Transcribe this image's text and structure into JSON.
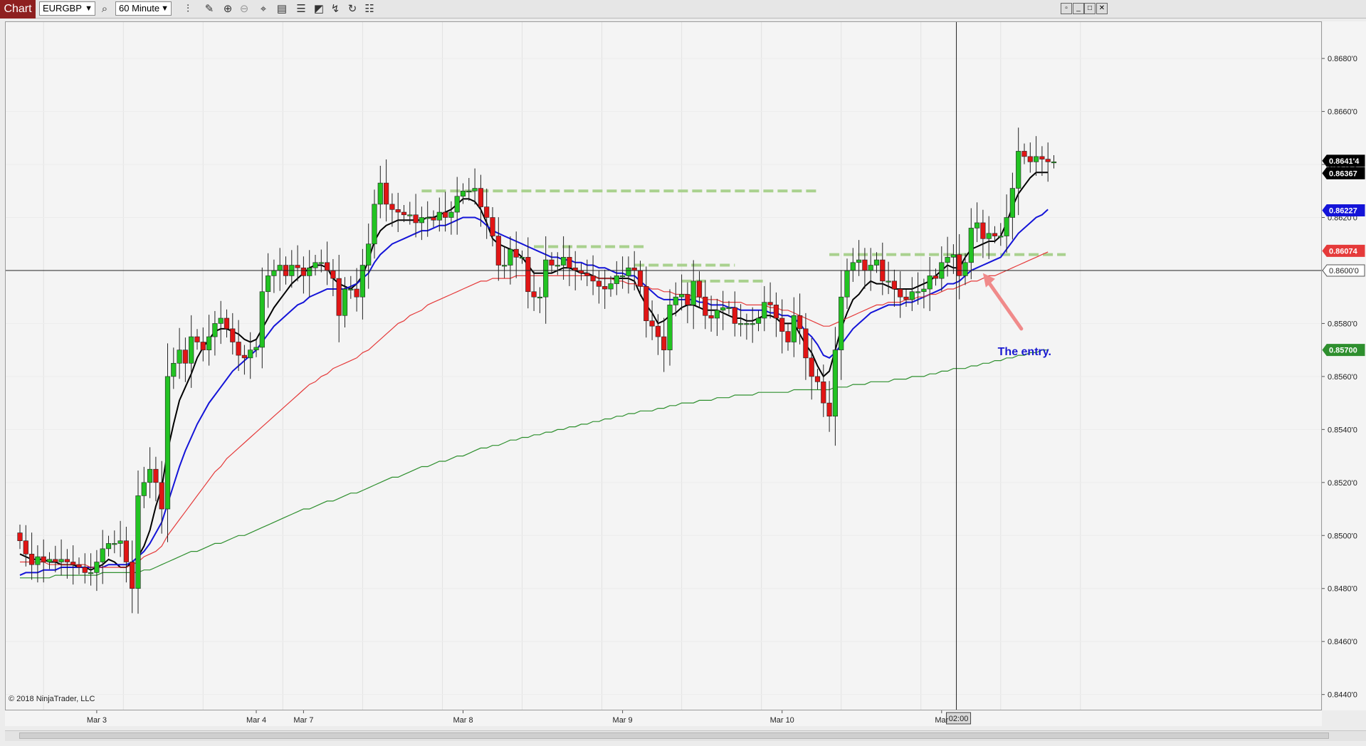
{
  "toolbar": {
    "chart_tab": "Chart",
    "instrument": "EURGBP",
    "interval": "60 Minute",
    "icons": [
      "magnifier-icon",
      "bar-type-icon",
      "pencil-icon",
      "zoom-in-icon",
      "zoom-out-icon",
      "crosshair-icon",
      "properties-icon",
      "data-series-icon",
      "strategies-icon",
      "drawing-tools-icon",
      "refresh-icon",
      "templates-icon"
    ],
    "window_icons": [
      "restore-icon",
      "minimize-icon",
      "maximize-icon",
      "close-icon"
    ]
  },
  "copyright": "© 2018 NinjaTrader, LLC",
  "crosshair_time": "02:00",
  "annotation": "The entry.",
  "colors": {
    "up": "#22c322",
    "down": "#e11515",
    "ema_fast": "#000000",
    "ema_mid": "#1414d8",
    "ema_slow": "#e53a3a",
    "ema_long": "#2e8f2e",
    "level_lines": "#a9d18e",
    "arrow": "#f08a8a"
  },
  "chart_data": {
    "type": "candlestick",
    "instrument": "EURGBP",
    "interval": "60 Minute",
    "y_range": [
      0.8434,
      0.8694
    ],
    "y_ticks": [
      "0.8680'0",
      "0.8660'0",
      "0.8640'0",
      "0.8620'0",
      "0.8600'0",
      "0.8580'0",
      "0.8560'0",
      "0.8540'0",
      "0.8520'0",
      "0.8500'0",
      "0.8480'0",
      "0.8460'0",
      "0.8440'0"
    ],
    "y_tick_values": [
      0.868,
      0.866,
      0.864,
      0.862,
      0.86,
      0.858,
      0.856,
      0.854,
      0.852,
      0.85,
      0.848,
      0.846,
      0.844
    ],
    "x_labels": [
      "Mar 3",
      "Mar 4",
      "Mar 7",
      "Mar 8",
      "Mar 9",
      "Mar 10",
      "Mar"
    ],
    "x_label_bars": [
      13,
      40,
      48,
      75,
      102,
      129,
      156
    ],
    "horizontal_line": 0.86,
    "price_badges": [
      {
        "label": "0.8641'4",
        "value": 0.86414,
        "color": "#000000"
      },
      {
        "label": "0.86367",
        "value": 0.86367,
        "color": "#000000"
      },
      {
        "label": "0.86227",
        "value": 0.86227,
        "color": "#1414d8"
      },
      {
        "label": "0.86074",
        "value": 0.86074,
        "color": "#e53a3a"
      },
      {
        "label": "0.8600'0",
        "value": 0.86,
        "color": "#ffffff"
      },
      {
        "label": "0.85700",
        "value": 0.857,
        "color": "#2e8f2e"
      }
    ],
    "level_lines": [
      {
        "price": 0.863,
        "from_bar": 68,
        "to_bar": 135
      },
      {
        "price": 0.8609,
        "from_bar": 87,
        "to_bar": 106
      },
      {
        "price": 0.8602,
        "from_bar": 104,
        "to_bar": 121
      },
      {
        "price": 0.8596,
        "from_bar": 112,
        "to_bar": 126
      },
      {
        "price": 0.8606,
        "from_bar": 137,
        "to_bar": 177
      }
    ],
    "crosshair_bar": 158.5,
    "close": [
      0.8498,
      0.8493,
      0.8489,
      0.8492,
      0.849,
      0.8491,
      0.849,
      0.8491,
      0.849,
      0.8489,
      0.8488,
      0.8486,
      0.8486,
      0.849,
      0.8495,
      0.8497,
      0.8497,
      0.8498,
      0.849,
      0.848,
      0.8515,
      0.852,
      0.8525,
      0.852,
      0.851,
      0.856,
      0.8565,
      0.857,
      0.8565,
      0.8575,
      0.8573,
      0.857,
      0.8575,
      0.858,
      0.8582,
      0.8578,
      0.8573,
      0.8568,
      0.8567,
      0.857,
      0.8571,
      0.8592,
      0.8598,
      0.86,
      0.8602,
      0.8598,
      0.8602,
      0.8601,
      0.8598,
      0.8601,
      0.8603,
      0.8603,
      0.86,
      0.8597,
      0.8583,
      0.8593,
      0.8593,
      0.859,
      0.8602,
      0.861,
      0.8625,
      0.8633,
      0.8625,
      0.8623,
      0.8622,
      0.8621,
      0.8621,
      0.8618,
      0.862,
      0.862,
      0.8619,
      0.8622,
      0.862,
      0.8622,
      0.8628,
      0.863,
      0.863,
      0.8631,
      0.8624,
      0.862,
      0.8613,
      0.8602,
      0.8602,
      0.8608,
      0.8605,
      0.8605,
      0.8592,
      0.859,
      0.859,
      0.8604,
      0.8602,
      0.8602,
      0.8605,
      0.8601,
      0.86,
      0.8599,
      0.8598,
      0.8596,
      0.8594,
      0.8593,
      0.8595,
      0.8598,
      0.8598,
      0.8601,
      0.86,
      0.8594,
      0.8581,
      0.8579,
      0.8575,
      0.857,
      0.8587,
      0.859,
      0.8591,
      0.8587,
      0.8596,
      0.859,
      0.8583,
      0.8582,
      0.8585,
      0.8586,
      0.8586,
      0.858,
      0.858,
      0.858,
      0.858,
      0.8582,
      0.8588,
      0.8587,
      0.8582,
      0.8577,
      0.8573,
      0.8583,
      0.8578,
      0.8567,
      0.856,
      0.8558,
      0.855,
      0.8545,
      0.857,
      0.859,
      0.86,
      0.8603,
      0.8604,
      0.86,
      0.8602,
      0.8604,
      0.8596,
      0.8596,
      0.8593,
      0.859,
      0.8589,
      0.8592,
      0.8592,
      0.8593,
      0.8598,
      0.8597,
      0.8603,
      0.8605,
      0.8606,
      0.8598,
      0.8603,
      0.8616,
      0.8618,
      0.8612,
      0.8614,
      0.8613,
      0.8613,
      0.862,
      0.8631,
      0.8645,
      0.8643,
      0.8641,
      0.8643,
      0.8642,
      0.8641,
      0.8641
    ],
    "series": [
      {
        "name": "EMA fast",
        "values": [
          0.8493,
          0.8492,
          0.8491,
          0.8491,
          0.8491,
          0.849,
          0.849,
          0.8489,
          0.8489,
          0.8489,
          0.8488,
          0.8488,
          0.8487,
          0.8488,
          0.8489,
          0.8491,
          0.849,
          0.8488,
          0.8488,
          0.849,
          0.8492,
          0.8496,
          0.8502,
          0.8511,
          0.8518,
          0.8532,
          0.8542,
          0.8551,
          0.8556,
          0.8561,
          0.8567,
          0.8571,
          0.8574,
          0.8577,
          0.8578,
          0.8578,
          0.8577,
          0.8576,
          0.8574,
          0.8573,
          0.8574,
          0.8578,
          0.8582,
          0.8586,
          0.8589,
          0.8592,
          0.8595,
          0.8597,
          0.8599,
          0.8601,
          0.8602,
          0.8602,
          0.8601,
          0.8597,
          0.8595,
          0.8594,
          0.8593,
          0.8595,
          0.8598,
          0.8604,
          0.8611,
          0.8615,
          0.8617,
          0.8618,
          0.8619,
          0.8619,
          0.8619,
          0.8619,
          0.8619,
          0.862,
          0.862,
          0.8621,
          0.8622,
          0.8623,
          0.8625,
          0.8627,
          0.8627,
          0.8626,
          0.8623,
          0.8618,
          0.8612,
          0.861,
          0.8609,
          0.8608,
          0.8607,
          0.8605,
          0.8602,
          0.8599,
          0.8599,
          0.8599,
          0.8599,
          0.86,
          0.8601,
          0.8601,
          0.86,
          0.8599,
          0.8599,
          0.8598,
          0.8597,
          0.8597,
          0.8597,
          0.8597,
          0.8597,
          0.8597,
          0.8596,
          0.8591,
          0.8587,
          0.8584,
          0.858,
          0.8581,
          0.8583,
          0.8584,
          0.8586,
          0.8587,
          0.8587,
          0.8586,
          0.8585,
          0.8585,
          0.8585,
          0.8584,
          0.8583,
          0.8582,
          0.8582,
          0.8581,
          0.8581,
          0.8582,
          0.8583,
          0.8583,
          0.8582,
          0.858,
          0.858,
          0.858,
          0.8576,
          0.8572,
          0.8569,
          0.8564,
          0.856,
          0.8562,
          0.857,
          0.8578,
          0.8584,
          0.8589,
          0.8591,
          0.8594,
          0.8596,
          0.8595,
          0.8595,
          0.8594,
          0.8593,
          0.8593,
          0.8593,
          0.8593,
          0.8594,
          0.8595,
          0.8596,
          0.8598,
          0.86,
          0.8602,
          0.8601,
          0.8601,
          0.8605,
          0.8608,
          0.8609,
          0.861,
          0.8611,
          0.8611,
          0.8613,
          0.8618,
          0.8624,
          0.8629,
          0.8632,
          0.8635,
          0.8637,
          0.8637,
          0.8637
        ]
      },
      {
        "name": "EMA mid",
        "values": [
          0.8485,
          0.8486,
          0.8486,
          0.8486,
          0.8487,
          0.8487,
          0.8487,
          0.8488,
          0.8488,
          0.8488,
          0.8488,
          0.8488,
          0.8488,
          0.8488,
          0.8488,
          0.8489,
          0.8489,
          0.8489,
          0.8489,
          0.849,
          0.8492,
          0.8494,
          0.8497,
          0.8501,
          0.8505,
          0.8512,
          0.8519,
          0.8526,
          0.8532,
          0.8537,
          0.8542,
          0.8546,
          0.855,
          0.8553,
          0.8556,
          0.8559,
          0.8562,
          0.8564,
          0.8566,
          0.8568,
          0.857,
          0.8573,
          0.8576,
          0.8579,
          0.8581,
          0.8583,
          0.8585,
          0.8587,
          0.8588,
          0.859,
          0.8591,
          0.8592,
          0.8593,
          0.8593,
          0.8593,
          0.8593,
          0.8594,
          0.8595,
          0.8597,
          0.8599,
          0.8603,
          0.8606,
          0.8608,
          0.861,
          0.8611,
          0.8612,
          0.8613,
          0.8614,
          0.8615,
          0.8615,
          0.8616,
          0.8617,
          0.8617,
          0.8618,
          0.8619,
          0.862,
          0.862,
          0.862,
          0.8619,
          0.8617,
          0.8615,
          0.8614,
          0.8613,
          0.8612,
          0.8611,
          0.861,
          0.8609,
          0.8608,
          0.8607,
          0.8606,
          0.8605,
          0.8605,
          0.8604,
          0.8604,
          0.8603,
          0.8603,
          0.8602,
          0.8602,
          0.8601,
          0.8601,
          0.86,
          0.8599,
          0.8599,
          0.8598,
          0.8598,
          0.8596,
          0.8594,
          0.8592,
          0.859,
          0.8589,
          0.8589,
          0.8589,
          0.8589,
          0.8589,
          0.8589,
          0.8588,
          0.8588,
          0.8587,
          0.8587,
          0.8587,
          0.8586,
          0.8586,
          0.8585,
          0.8585,
          0.8585,
          0.8585,
          0.8585,
          0.8584,
          0.8584,
          0.8583,
          0.8583,
          0.8582,
          0.858,
          0.8577,
          0.8575,
          0.8572,
          0.8568,
          0.8567,
          0.8569,
          0.8572,
          0.8575,
          0.8578,
          0.858,
          0.8582,
          0.8584,
          0.8585,
          0.8586,
          0.8587,
          0.8587,
          0.8587,
          0.8588,
          0.8588,
          0.8589,
          0.859,
          0.8591,
          0.8592,
          0.8593,
          0.8595,
          0.8595,
          0.8596,
          0.8598,
          0.86,
          0.8601,
          0.8602,
          0.8603,
          0.8604,
          0.8605,
          0.8608,
          0.8611,
          0.8614,
          0.8616,
          0.8618,
          0.862,
          0.8621,
          0.8623
        ]
      },
      {
        "name": "EMA slow",
        "values": [
          0.849,
          0.849,
          0.849,
          0.849,
          0.849,
          0.8489,
          0.8489,
          0.8489,
          0.8489,
          0.8489,
          0.8489,
          0.8489,
          0.8488,
          0.8488,
          0.8488,
          0.8488,
          0.8488,
          0.8488,
          0.8488,
          0.8489,
          0.849,
          0.8492,
          0.8493,
          0.8494,
          0.8496,
          0.85,
          0.8503,
          0.8506,
          0.8509,
          0.8512,
          0.8515,
          0.8518,
          0.8521,
          0.8524,
          0.8526,
          0.8529,
          0.8531,
          0.8533,
          0.8535,
          0.8537,
          0.8539,
          0.8541,
          0.8543,
          0.8545,
          0.8547,
          0.8549,
          0.8551,
          0.8553,
          0.8555,
          0.8557,
          0.8558,
          0.856,
          0.8561,
          0.8563,
          0.8564,
          0.8565,
          0.8566,
          0.8567,
          0.8569,
          0.857,
          0.8572,
          0.8574,
          0.8576,
          0.8578,
          0.858,
          0.8581,
          0.8583,
          0.8584,
          0.8585,
          0.8587,
          0.8588,
          0.8589,
          0.859,
          0.8591,
          0.8592,
          0.8593,
          0.8594,
          0.8595,
          0.8596,
          0.8596,
          0.8597,
          0.8597,
          0.8597,
          0.8597,
          0.8598,
          0.8598,
          0.8598,
          0.8598,
          0.8598,
          0.8598,
          0.8598,
          0.8598,
          0.8598,
          0.8598,
          0.8598,
          0.8598,
          0.8598,
          0.8598,
          0.8597,
          0.8597,
          0.8597,
          0.8596,
          0.8596,
          0.8595,
          0.8595,
          0.8594,
          0.8594,
          0.8593,
          0.8593,
          0.8592,
          0.8592,
          0.8591,
          0.8591,
          0.8591,
          0.859,
          0.859,
          0.8589,
          0.8589,
          0.8589,
          0.8588,
          0.8588,
          0.8588,
          0.8588,
          0.8587,
          0.8587,
          0.8587,
          0.8587,
          0.8586,
          0.8586,
          0.8585,
          0.8585,
          0.8584,
          0.8583,
          0.8582,
          0.8581,
          0.858,
          0.8579,
          0.8579,
          0.858,
          0.8581,
          0.8582,
          0.8583,
          0.8584,
          0.8585,
          0.8586,
          0.8587,
          0.8587,
          0.8588,
          0.8588,
          0.8588,
          0.8589,
          0.8589,
          0.859,
          0.859,
          0.8591,
          0.8591,
          0.8592,
          0.8593,
          0.8593,
          0.8594,
          0.8595,
          0.8596,
          0.8596,
          0.8597,
          0.8598,
          0.8598,
          0.8599,
          0.86,
          0.8601,
          0.8602,
          0.8603,
          0.8604,
          0.8605,
          0.8606,
          0.8607
        ]
      },
      {
        "name": "EMA long",
        "values": [
          0.8484,
          0.8484,
          0.8484,
          0.8484,
          0.8484,
          0.8484,
          0.8485,
          0.8485,
          0.8485,
          0.8485,
          0.8485,
          0.8485,
          0.8485,
          0.8485,
          0.8486,
          0.8486,
          0.8486,
          0.8486,
          0.8486,
          0.8486,
          0.8486,
          0.8487,
          0.8487,
          0.8488,
          0.8489,
          0.849,
          0.8491,
          0.8492,
          0.8493,
          0.8494,
          0.8494,
          0.8495,
          0.8496,
          0.8497,
          0.8497,
          0.8498,
          0.8499,
          0.85,
          0.85,
          0.8501,
          0.8502,
          0.8503,
          0.8504,
          0.8505,
          0.8506,
          0.8507,
          0.8508,
          0.8509,
          0.851,
          0.851,
          0.8511,
          0.8512,
          0.8513,
          0.8513,
          0.8514,
          0.8515,
          0.8516,
          0.8516,
          0.8517,
          0.8518,
          0.8519,
          0.852,
          0.8521,
          0.8522,
          0.8522,
          0.8523,
          0.8524,
          0.8525,
          0.8526,
          0.8526,
          0.8527,
          0.8528,
          0.8528,
          0.8529,
          0.853,
          0.853,
          0.8531,
          0.8532,
          0.8533,
          0.8533,
          0.8534,
          0.8534,
          0.8535,
          0.8536,
          0.8536,
          0.8537,
          0.8537,
          0.8538,
          0.8538,
          0.8539,
          0.8539,
          0.854,
          0.854,
          0.8541,
          0.8541,
          0.8542,
          0.8542,
          0.8543,
          0.8543,
          0.8544,
          0.8544,
          0.8545,
          0.8545,
          0.8546,
          0.8546,
          0.8547,
          0.8547,
          0.8547,
          0.8548,
          0.8548,
          0.8549,
          0.8549,
          0.855,
          0.855,
          0.855,
          0.8551,
          0.8551,
          0.8551,
          0.8552,
          0.8552,
          0.8552,
          0.8553,
          0.8553,
          0.8553,
          0.8553,
          0.8554,
          0.8554,
          0.8554,
          0.8554,
          0.8554,
          0.8554,
          0.8555,
          0.8555,
          0.8555,
          0.8555,
          0.8555,
          0.8555,
          0.8555,
          0.8556,
          0.8556,
          0.8556,
          0.8557,
          0.8557,
          0.8557,
          0.8558,
          0.8558,
          0.8558,
          0.8558,
          0.8559,
          0.8559,
          0.8559,
          0.856,
          0.856,
          0.856,
          0.8561,
          0.8561,
          0.8562,
          0.8562,
          0.8563,
          0.8563,
          0.8563,
          0.8564,
          0.8564,
          0.8565,
          0.8565,
          0.8566,
          0.8566,
          0.8567,
          0.8567,
          0.8568,
          0.8568,
          0.8569,
          0.8569,
          0.857,
          0.857
        ]
      }
    ]
  }
}
